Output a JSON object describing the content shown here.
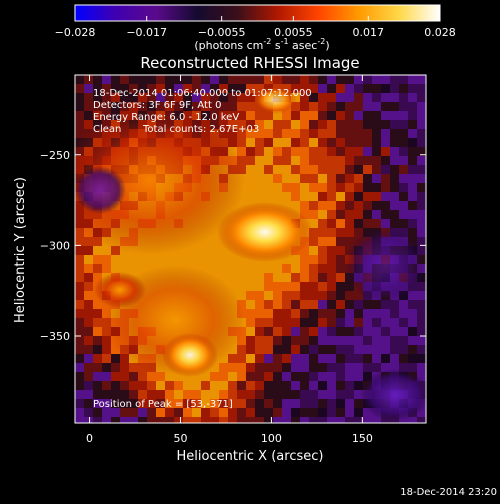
{
  "chart_data": {
    "type": "heatmap",
    "title": "Reconstructed RHESSI Image",
    "xlabel": "Heliocentric X (arcsec)",
    "ylabel": "Heliocentric Y (arcsec)",
    "xlim": [
      -8,
      185
    ],
    "ylim": [
      -398,
      -206
    ],
    "xticks": [
      "0",
      "50",
      "100",
      "150"
    ],
    "xtick_values": [
      0,
      50,
      100,
      150
    ],
    "yticks": [
      "-250",
      "-300",
      "-350"
    ],
    "ytick_values": [
      -250,
      -300,
      -350
    ],
    "colorbar": {
      "range": [
        -0.028,
        0.028
      ],
      "ticks": [
        "-0.028",
        "-0.017",
        "-0.0055",
        "0.0055",
        "0.017",
        "0.028"
      ],
      "tick_values": [
        -0.028,
        -0.017,
        -0.0055,
        0.0055,
        0.017,
        0.028
      ],
      "unit_parts": [
        "(photons cm",
        "-2",
        " s",
        "-1",
        " asec",
        "-2",
        ")"
      ],
      "colormap": [
        "#0000ff",
        "#4000b0",
        "#5a0a8c",
        "#150a30",
        "#3a0f1a",
        "#b01800",
        "#ff4400",
        "#ff9a00",
        "#ffd84a",
        "#ffffff"
      ]
    },
    "annotations": [
      "18-Dec-2014 01:06:40.000 to 01:07:12.000",
      "Detectors: 3F 6F 9F, Att 0",
      "Energy Range: 6.0 - 12.0 keV",
      "Clean",
      "Total counts: 2.67E+03"
    ],
    "peak_label": "Position of Peak = [53,-371]",
    "peak": [
      53,
      -371
    ],
    "grid": false
  },
  "footer": {
    "timestamp": "18-Dec-2014 23:20"
  }
}
